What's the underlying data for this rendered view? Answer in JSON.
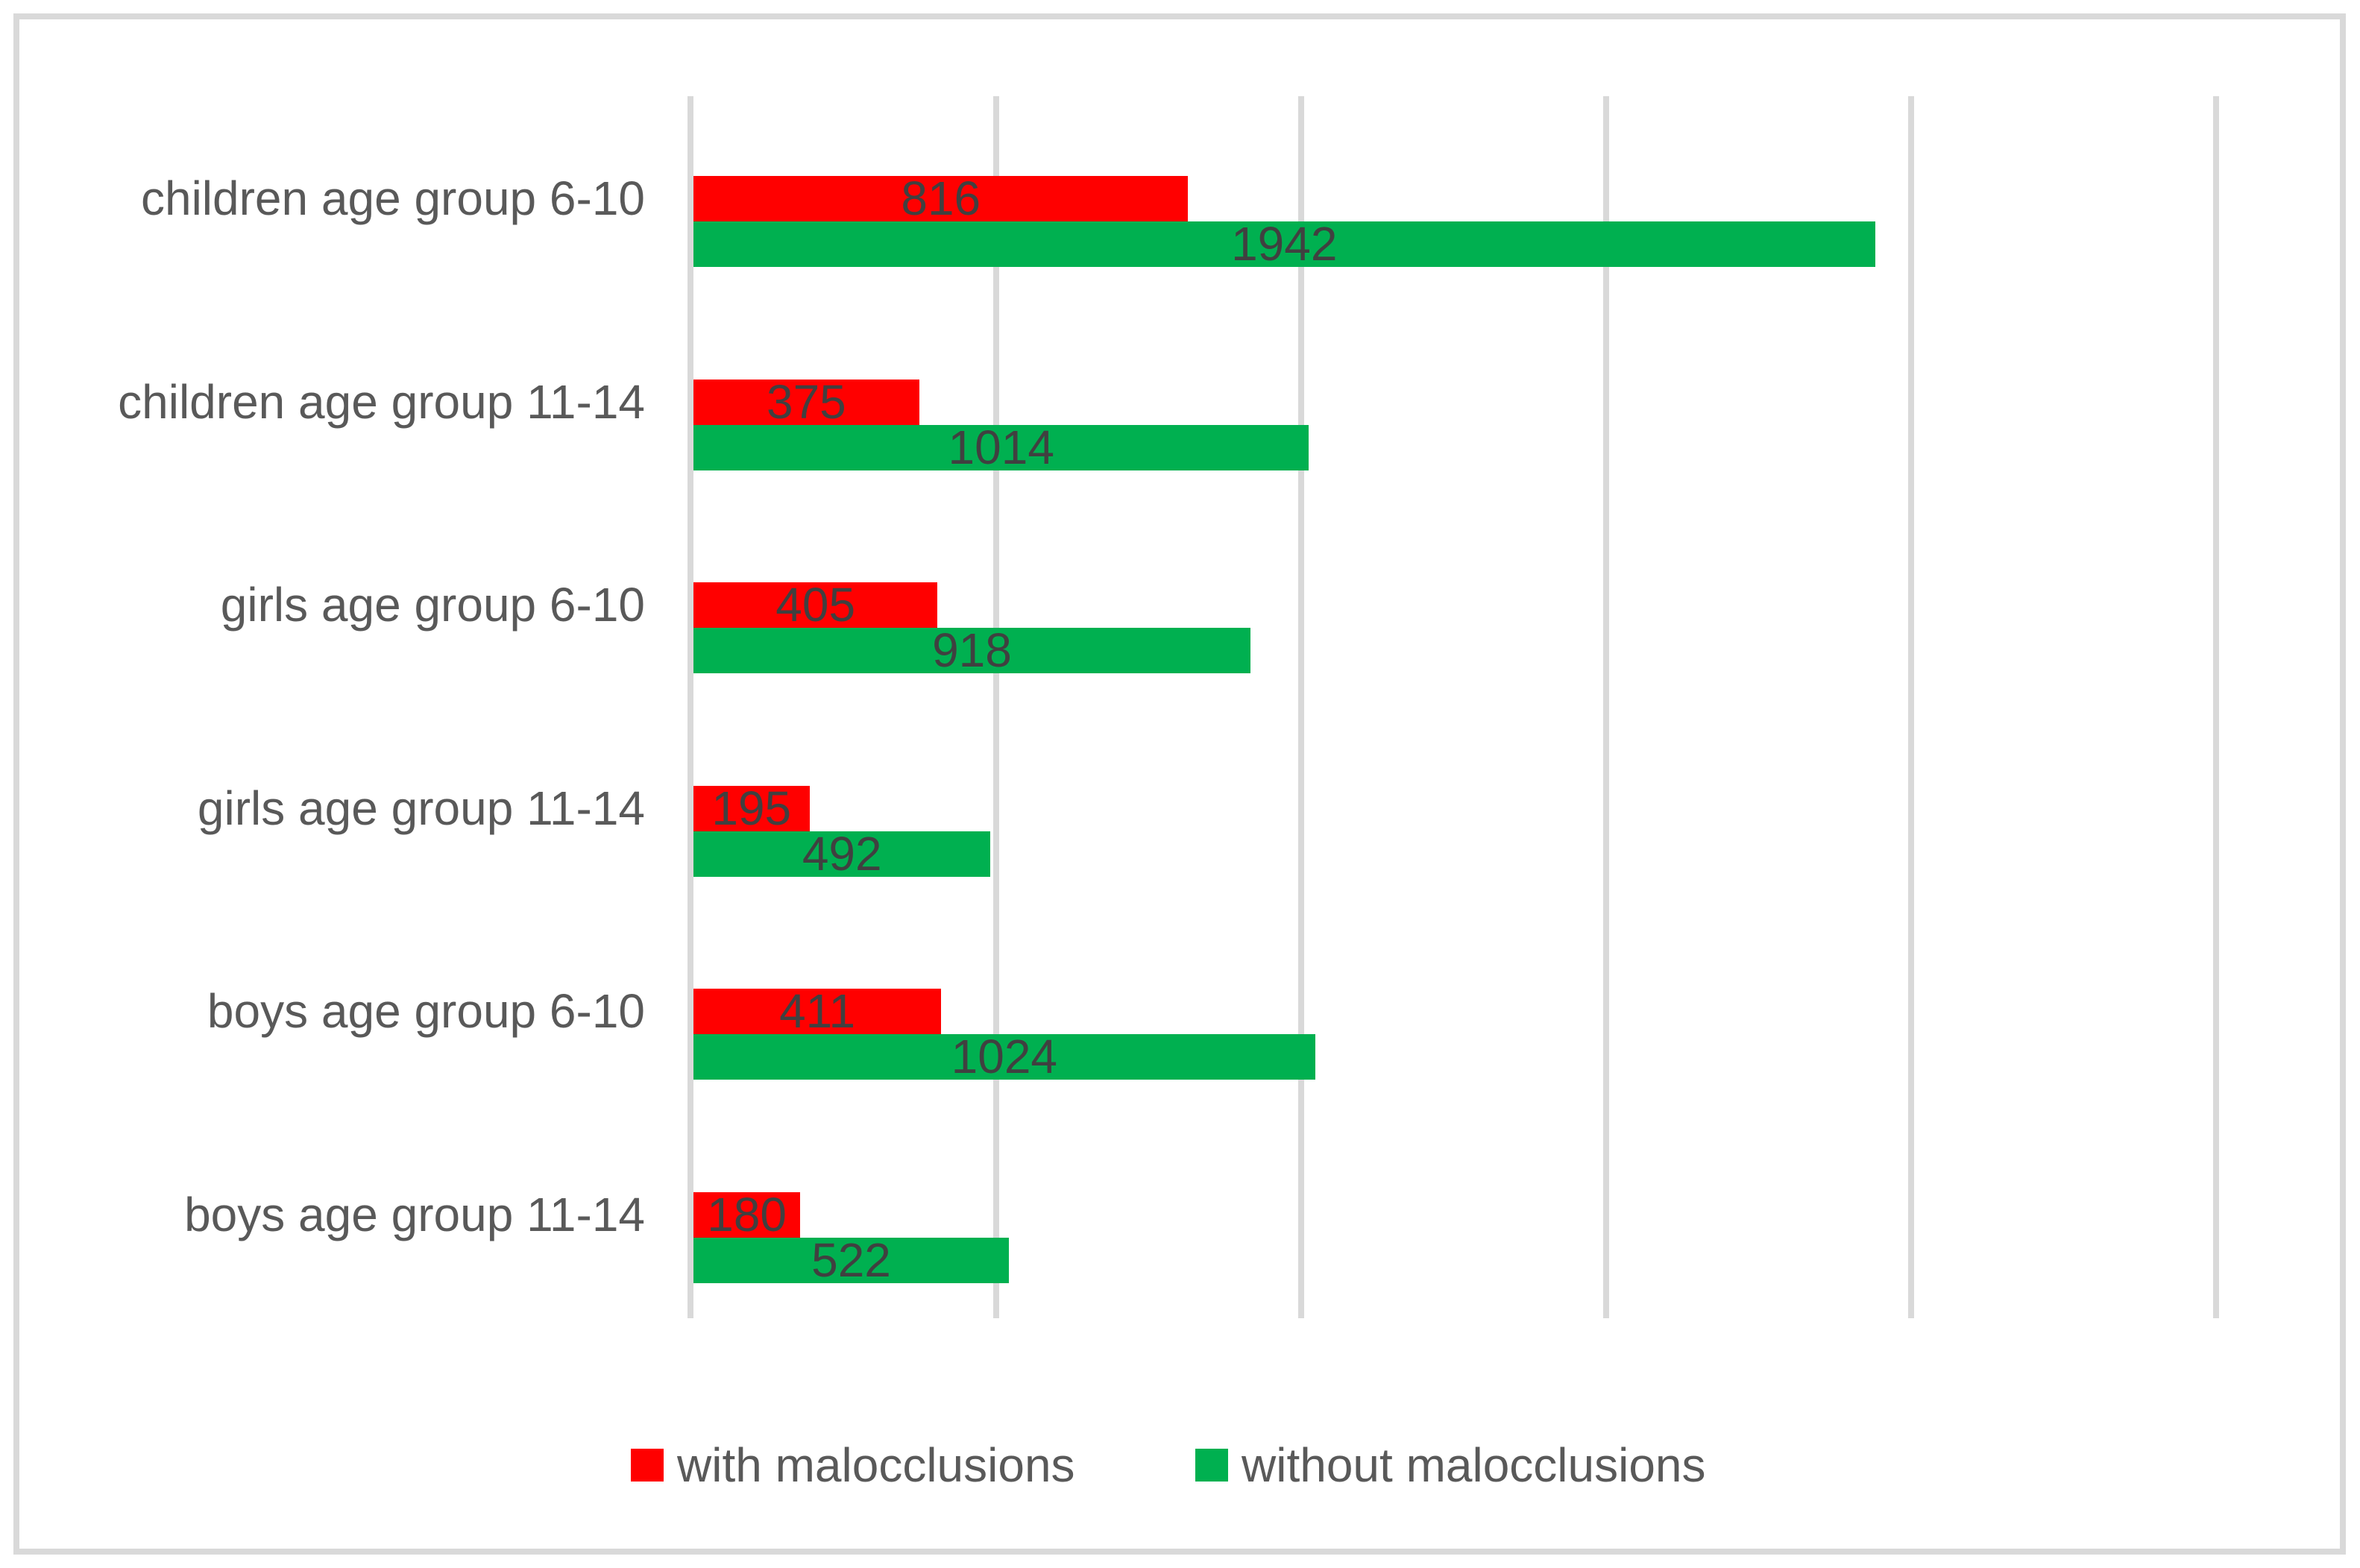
{
  "chart_data": {
    "type": "bar",
    "orientation": "horizontal",
    "title": "",
    "xlabel": "",
    "ylabel": "",
    "categories": [
      "children age group 6-10",
      "children age group 11-14",
      "girls age group 6-10",
      "girls age group 11-14",
      "boys age group 6-10",
      "boys age group 11-14"
    ],
    "series": [
      {
        "name": "with malocclusions",
        "color": "#ff0000",
        "values": [
          816,
          375,
          405,
          195,
          411,
          180
        ]
      },
      {
        "name": "without malocclusions",
        "color": "#00b050",
        "values": [
          1942,
          1014,
          918,
          492,
          1024,
          522
        ]
      }
    ],
    "value_labels": "inside-center",
    "xlim": [
      0,
      2500
    ],
    "x_gridline_interval": 500,
    "axis_tick_labels_visible": false,
    "grid": true,
    "legend_position": "bottom"
  },
  "colors": {
    "background": "#ffffff",
    "frame_border": "#d9d9d9",
    "gridline": "#d9d9d9",
    "category_label": "#595959",
    "value_label": "#404040",
    "legend_label": "#595959"
  }
}
